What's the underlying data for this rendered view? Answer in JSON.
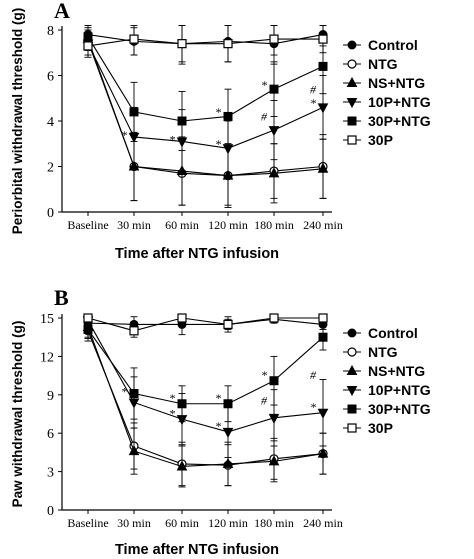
{
  "chart_data": [
    {
      "type": "line",
      "panel": "A",
      "xlabel": "Time after NTG infusion",
      "ylabel": "Periorbital withdrawal threshold (g)",
      "categories": [
        "Baseline",
        "30 min",
        "60 min",
        "120 min",
        "180 min",
        "240 min"
      ],
      "ylim": [
        0,
        8
      ],
      "yticks": [
        0,
        2,
        4,
        6,
        8
      ],
      "legend_position": "right",
      "series": [
        {
          "name": "Control",
          "marker": "filled-circle",
          "values": [
            7.8,
            7.5,
            7.4,
            7.5,
            7.4,
            7.8
          ],
          "errors": [
            0.4,
            0.6,
            0.9,
            0.9,
            0.9,
            0.5
          ]
        },
        {
          "name": "NTG",
          "marker": "open-circle",
          "values": [
            7.5,
            2.0,
            1.7,
            1.6,
            1.8,
            2.0
          ],
          "errors": [
            0.4,
            1.5,
            1.4,
            1.3,
            1.2,
            1.4
          ]
        },
        {
          "name": "NS+NTG",
          "marker": "filled-triangle",
          "values": [
            7.6,
            2.0,
            1.8,
            1.6,
            1.7,
            1.9
          ],
          "errors": [
            0.4,
            1.5,
            1.5,
            1.4,
            1.3,
            1.3
          ]
        },
        {
          "name": "10P+NTG",
          "marker": "filled-tri-down",
          "values": [
            7.4,
            3.3,
            3.1,
            2.8,
            3.6,
            4.6
          ],
          "errors": [
            0.5,
            1.3,
            1.4,
            1.2,
            1.3,
            1.4
          ]
        },
        {
          "name": "30P+NTG",
          "marker": "filled-square",
          "values": [
            7.7,
            4.4,
            4.0,
            4.2,
            5.4,
            6.4
          ],
          "errors": [
            0.4,
            1.3,
            1.3,
            1.2,
            1.2,
            1.2
          ]
        },
        {
          "name": "30P",
          "marker": "open-square",
          "values": [
            7.3,
            7.6,
            7.4,
            7.4,
            7.6,
            7.6
          ],
          "errors": [
            0.5,
            0.7,
            0.8,
            0.8,
            0.7,
            0.6
          ]
        }
      ],
      "annotations": [
        {
          "text": "*",
          "x": "30 min",
          "y": 3.3
        },
        {
          "text": "*",
          "x": "60 min",
          "y": 3.1
        },
        {
          "text": "*",
          "x": "120 min",
          "y": 2.9
        },
        {
          "text": "*",
          "x": "120 min",
          "y": 4.3
        },
        {
          "text": "*",
          "x": "180 min",
          "y": 5.5
        },
        {
          "text": "#",
          "x": "180 min",
          "y": 4.1
        },
        {
          "text": "*",
          "x": "240 min",
          "y": 4.7
        },
        {
          "text": "#",
          "x": "240 min",
          "y": 5.3
        }
      ]
    },
    {
      "type": "line",
      "panel": "B",
      "xlabel": "Time after NTG infusion",
      "ylabel": "Paw withdrawal threshold (g)",
      "categories": [
        "Baseline",
        "30 min",
        "60 min",
        "120 min",
        "180 min",
        "240 min"
      ],
      "ylim": [
        0,
        15
      ],
      "yticks": [
        0,
        3,
        6,
        9,
        12,
        15
      ],
      "legend_position": "right",
      "series": [
        {
          "name": "Control",
          "marker": "filled-circle",
          "values": [
            14.6,
            14.5,
            14.5,
            14.5,
            14.9,
            14.5
          ],
          "errors": [
            0.4,
            0.6,
            0.8,
            0.6,
            0.3,
            0.4
          ]
        },
        {
          "name": "NTG",
          "marker": "open-circle",
          "values": [
            14.0,
            5.0,
            3.6,
            3.5,
            4.0,
            4.4
          ],
          "errors": [
            0.8,
            1.8,
            1.7,
            1.6,
            1.6,
            1.6
          ]
        },
        {
          "name": "NS+NTG",
          "marker": "filled-triangle",
          "values": [
            14.3,
            4.6,
            3.4,
            3.6,
            3.8,
            4.4
          ],
          "errors": [
            0.8,
            1.8,
            1.6,
            1.7,
            1.6,
            1.6
          ]
        },
        {
          "name": "10P+NTG",
          "marker": "filled-tri-down",
          "values": [
            14.8,
            8.4,
            7.1,
            6.1,
            7.2,
            7.6
          ],
          "errors": [
            0.6,
            2.0,
            2.0,
            2.0,
            2.2,
            2.6
          ]
        },
        {
          "name": "30P+NTG",
          "marker": "filled-square",
          "values": [
            14.1,
            9.1,
            8.3,
            8.3,
            10.1,
            13.5
          ],
          "errors": [
            0.7,
            2.0,
            1.4,
            1.4,
            1.9,
            1.0
          ]
        },
        {
          "name": "30P",
          "marker": "open-square",
          "values": [
            15.0,
            14.0,
            15.0,
            14.5,
            15.0,
            15.0
          ],
          "errors": [
            0.3,
            0.5,
            0.3,
            0.4,
            0.3,
            0.3
          ]
        }
      ],
      "annotations": [
        {
          "text": "*",
          "x": "30 min",
          "y": 9.1
        },
        {
          "text": "*",
          "x": "60 min",
          "y": 8.6
        },
        {
          "text": "*",
          "x": "60 min",
          "y": 7.4
        },
        {
          "text": "*",
          "x": "120 min",
          "y": 8.6
        },
        {
          "text": "*",
          "x": "120 min",
          "y": 6.4
        },
        {
          "text": "*",
          "x": "180 min",
          "y": 10.4
        },
        {
          "text": "#",
          "x": "180 min",
          "y": 8.4
        },
        {
          "text": "*",
          "x": "240 min",
          "y": 7.9
        },
        {
          "text": "#",
          "x": "240 min",
          "y": 10.4
        }
      ]
    }
  ]
}
